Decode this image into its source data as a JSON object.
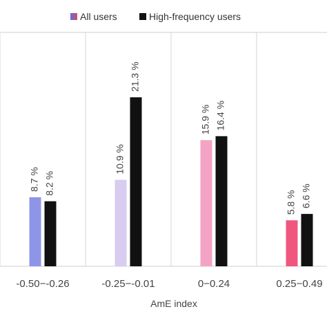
{
  "chart_data": {
    "type": "bar",
    "xlabel": "AmE index",
    "ylabel": "",
    "title": "",
    "categories": [
      "-0.50−-0.26",
      "-0.25−-0.01",
      "0−0.24",
      "0.25−0.49"
    ],
    "series": [
      {
        "name": "All users",
        "values": [
          8.7,
          10.9,
          15.9,
          5.8
        ],
        "labels": [
          "8.7 %",
          "10.9 %",
          "15.9 %",
          "5.8 %"
        ],
        "colors": [
          "#8f95e6",
          "#d8ccf1",
          "#f5a3c4",
          "#f0577f"
        ]
      },
      {
        "name": "High-frequency users",
        "values": [
          8.2,
          21.3,
          16.4,
          6.6
        ],
        "labels": [
          "8.2 %",
          "21.3 %",
          "16.4 %",
          "6.6 %"
        ],
        "colors": [
          "#111111",
          "#111111",
          "#111111",
          "#111111"
        ]
      }
    ],
    "ylim": [
      0,
      25
    ],
    "legend_position": "top",
    "legend_swatch_all_users": [
      "#5b6ee1",
      "#d64a6b"
    ],
    "grid": "vertical separators",
    "colors": {
      "grid": "#d6d6d6",
      "axis": "#cfcfcf",
      "text": "#444444",
      "black": "#111111"
    }
  }
}
